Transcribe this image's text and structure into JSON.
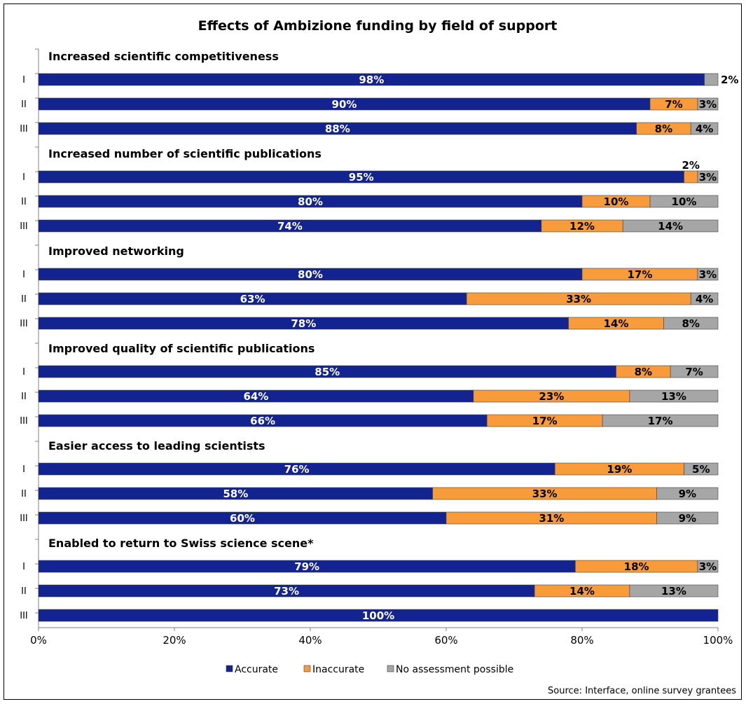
{
  "chart_data": {
    "type": "bar",
    "orientation": "horizontal",
    "stacked": "percent",
    "title": "Effects of Ambizione funding by field of support",
    "xlim": [
      0,
      100
    ],
    "x_ticks": [
      "0%",
      "20%",
      "40%",
      "60%",
      "80%",
      "100%"
    ],
    "grid": false,
    "legend_position": "bottom",
    "series": [
      {
        "name": "Accurate",
        "color": "#13238f"
      },
      {
        "name": "Inaccurate",
        "color": "#f89b3a"
      },
      {
        "name": "No assessment possible",
        "color": "#a6a6a6"
      }
    ],
    "groups": [
      {
        "title": "Increased  scientific competitiveness",
        "rows": [
          {
            "label": "I",
            "values": [
              98,
              0,
              2
            ],
            "texts": [
              "98%",
              "",
              "2%"
            ]
          },
          {
            "label": "II",
            "values": [
              90,
              7,
              3
            ],
            "texts": [
              "90%",
              "7%",
              "3%"
            ]
          },
          {
            "label": "III",
            "values": [
              88,
              8,
              4
            ],
            "texts": [
              "88%",
              "8%",
              "4%"
            ]
          }
        ]
      },
      {
        "title": "Increased  number of scientific publications",
        "rows": [
          {
            "label": "I",
            "values": [
              95,
              2,
              3
            ],
            "texts": [
              "95%",
              "2%",
              "3%"
            ]
          },
          {
            "label": "II",
            "values": [
              80,
              10,
              10
            ],
            "texts": [
              "80%",
              "10%",
              "10%"
            ]
          },
          {
            "label": "III",
            "values": [
              74,
              12,
              14
            ],
            "texts": [
              "74%",
              "12%",
              "14%"
            ]
          }
        ]
      },
      {
        "title": "Improved networking",
        "rows": [
          {
            "label": "I",
            "values": [
              80,
              17,
              3
            ],
            "texts": [
              "80%",
              "17%",
              "3%"
            ]
          },
          {
            "label": "II",
            "values": [
              63,
              33,
              4
            ],
            "texts": [
              "63%",
              "33%",
              "4%"
            ]
          },
          {
            "label": "III",
            "values": [
              78,
              14,
              8
            ],
            "texts": [
              "78%",
              "14%",
              "8%"
            ]
          }
        ]
      },
      {
        "title": "Improved quality of scientific publications",
        "rows": [
          {
            "label": "I",
            "values": [
              85,
              8,
              7
            ],
            "texts": [
              "85%",
              "8%",
              "7%"
            ]
          },
          {
            "label": "II",
            "values": [
              64,
              23,
              13
            ],
            "texts": [
              "64%",
              "23%",
              "13%"
            ]
          },
          {
            "label": "III",
            "values": [
              66,
              17,
              17
            ],
            "texts": [
              "66%",
              "17%",
              "17%"
            ]
          }
        ]
      },
      {
        "title": "Easier access to leading scientists",
        "rows": [
          {
            "label": "I",
            "values": [
              76,
              19,
              5
            ],
            "texts": [
              "76%",
              "19%",
              "5%"
            ]
          },
          {
            "label": "II",
            "values": [
              58,
              33,
              9
            ],
            "texts": [
              "58%",
              "33%",
              "9%"
            ]
          },
          {
            "label": "III",
            "values": [
              60,
              31,
              9
            ],
            "texts": [
              "60%",
              "31%",
              "9%"
            ]
          }
        ]
      },
      {
        "title": "Enabled to return to Swiss science scene*",
        "rows": [
          {
            "label": "I",
            "values": [
              79,
              18,
              3
            ],
            "texts": [
              "79%",
              "18%",
              "3%"
            ]
          },
          {
            "label": "II",
            "values": [
              73,
              14,
              13
            ],
            "texts": [
              "73%",
              "14%",
              "13%"
            ]
          },
          {
            "label": "III",
            "values": [
              100,
              0,
              0
            ],
            "texts": [
              "100%",
              "",
              ""
            ]
          }
        ]
      }
    ]
  },
  "source": "Source: Interface, online survey grantees"
}
